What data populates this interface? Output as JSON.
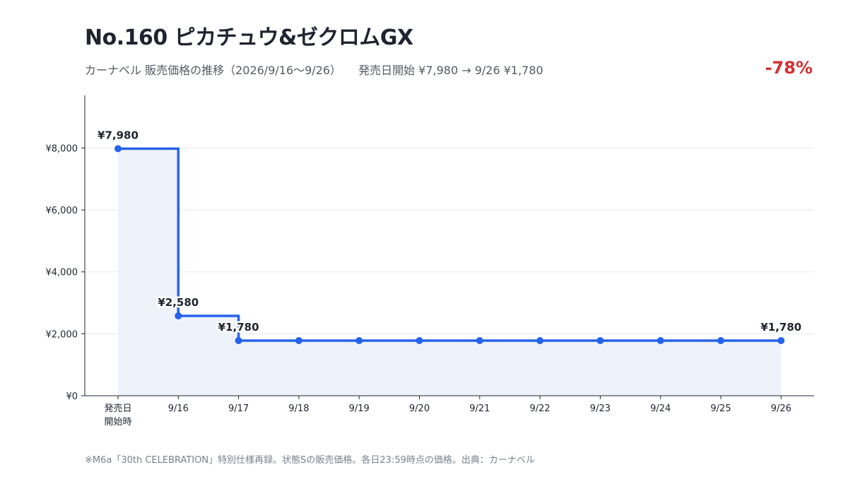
{
  "header": {
    "title": "No.160 ピカチュウ&ゼクロムGX",
    "subtitle": "カーナベル 販売価格の推移（2026/9/16〜9/26）",
    "summary": "発売日開始 ¥7,980 → 9/26 ¥1,780",
    "change": "-78%",
    "change_color": "#d32f2f"
  },
  "footnote": "※M6a「30th CELEBRATION」特別仕様再録。状態Sの販売価格。各日23:59時点の価格。出典：カーナベル",
  "colors": {
    "line": "#2563eb",
    "area": "#eef2fb",
    "grid": "#e6e8ec",
    "axis": "#1f2430"
  },
  "chart_data": {
    "type": "line",
    "step": true,
    "categories": [
      "発売日\n開始時",
      "9/16",
      "9/17",
      "9/18",
      "9/19",
      "9/20",
      "9/21",
      "9/22",
      "9/23",
      "9/24",
      "9/25",
      "9/26"
    ],
    "values": [
      7980,
      2580,
      1780,
      1780,
      1780,
      1780,
      1780,
      1780,
      1780,
      1780,
      1780,
      1780
    ],
    "ylim": [
      0,
      9700
    ],
    "yticks": [
      0,
      2000,
      4000,
      6000,
      8000
    ],
    "ytick_labels": [
      "¥0",
      "¥2,000",
      "¥4,000",
      "¥6,000",
      "¥8,000"
    ],
    "data_labels": [
      {
        "index": 0,
        "text": "¥7,980"
      },
      {
        "index": 1,
        "text": "¥2,580"
      },
      {
        "index": 2,
        "text": "¥1,780"
      },
      {
        "index": 11,
        "text": "¥1,780"
      }
    ],
    "grid": true
  }
}
